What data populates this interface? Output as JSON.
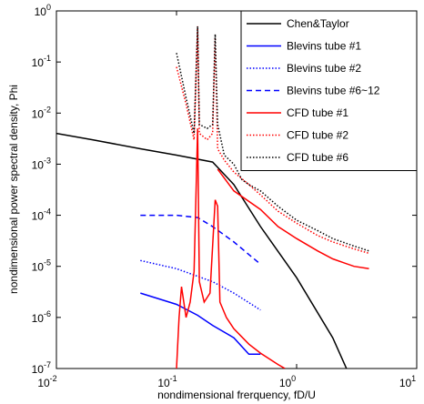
{
  "chart_data": {
    "type": "line",
    "xlabel": "nondimensional frerquency, fD/U",
    "ylabel": "nondimensional power spectral density, Phi",
    "xscale": "log",
    "yscale": "log",
    "xlim": [
      0.01,
      10
    ],
    "ylim": [
      1e-07,
      1
    ],
    "xticks": [
      {
        "value": 0.01,
        "label": "10^-2"
      },
      {
        "value": 0.1,
        "label": "10^-1"
      },
      {
        "value": 1,
        "label": "10^0"
      },
      {
        "value": 10,
        "label": "10^1"
      }
    ],
    "yticks": [
      {
        "value": 1e-07,
        "label": "10^-7"
      },
      {
        "value": 1e-06,
        "label": "10^-6"
      },
      {
        "value": 1e-05,
        "label": "10^-5"
      },
      {
        "value": 0.0001,
        "label": "10^-4"
      },
      {
        "value": 0.001,
        "label": "10^-3"
      },
      {
        "value": 0.01,
        "label": "10^-2"
      },
      {
        "value": 0.1,
        "label": "10^-1"
      },
      {
        "value": 1,
        "label": "10^0"
      }
    ],
    "legend": "upper right",
    "series": [
      {
        "name": "Chen&Taylor",
        "color": "#000000",
        "style": "solid",
        "x": [
          0.01,
          0.02,
          0.05,
          0.1,
          0.2,
          0.3,
          0.5,
          1,
          2,
          2.6
        ],
        "values": [
          0.004,
          0.003,
          0.002,
          0.0015,
          0.0011,
          0.0004,
          6e-05,
          6e-06,
          4e-07,
          1e-07
        ]
      },
      {
        "name": "Blevins tube #1",
        "color": "#0000ff",
        "style": "solid",
        "x": [
          0.05,
          0.1,
          0.15,
          0.2,
          0.3,
          0.4,
          0.5
        ],
        "values": [
          3e-06,
          1.8e-06,
          1.1e-06,
          7e-07,
          4e-07,
          1.9e-07,
          1.9e-07
        ]
      },
      {
        "name": "Blevins tube #2",
        "color": "#0000ff",
        "style": "dotted",
        "x": [
          0.05,
          0.1,
          0.2,
          0.3,
          0.5
        ],
        "values": [
          1.3e-05,
          9e-06,
          5e-06,
          3e-06,
          1.4e-06
        ]
      },
      {
        "name": "Blevins tube #6~12",
        "color": "#0000ff",
        "style": "dashed",
        "x": [
          0.05,
          0.1,
          0.15,
          0.2,
          0.3,
          0.5
        ],
        "values": [
          0.0001,
          0.0001,
          9e-05,
          6e-05,
          3e-05,
          1.1e-05
        ]
      },
      {
        "name": "CFD tube #1",
        "color": "#ff0000",
        "style": "solid",
        "x": [
          0.1,
          0.105,
          0.11,
          0.12,
          0.13,
          0.14,
          0.15,
          0.155,
          0.17,
          0.19,
          0.21,
          0.22,
          0.23,
          0.26,
          0.3,
          0.4,
          0.5,
          0.7,
          0.8,
          0.8,
          0.22,
          0.3,
          0.5,
          0.7,
          1,
          1.5,
          2,
          3,
          4
        ],
        "values": [
          1e-07,
          1e-06,
          4e-06,
          1e-06,
          2e-06,
          8e-06,
          0.005,
          5e-06,
          2e-06,
          3e-06,
          0.0002,
          0.00015,
          2e-06,
          1e-06,
          6e-07,
          3e-07,
          2e-07,
          1.2e-07,
          1e-07,
          null,
          0.0008,
          0.0003,
          0.00013,
          6e-05,
          3.5e-05,
          2e-05,
          1.4e-05,
          1e-05,
          9e-06
        ]
      },
      {
        "name": "CFD tube #2",
        "color": "#ff0000",
        "style": "dotted",
        "x": [
          0.1,
          0.12,
          0.14,
          0.15,
          0.155,
          0.18,
          0.2,
          0.21,
          0.22,
          0.25,
          0.3,
          0.4,
          0.5,
          0.7,
          1,
          1.5,
          2,
          3,
          4
        ],
        "values": [
          0.08,
          0.015,
          0.003,
          0.5,
          0.004,
          0.003,
          0.004,
          0.3,
          0.002,
          0.0012,
          0.0007,
          0.0004,
          0.00025,
          0.00012,
          7e-05,
          4e-05,
          3e-05,
          2.2e-05,
          1.8e-05
        ]
      },
      {
        "name": "CFD tube #6",
        "color": "#000000",
        "style": "dotted",
        "x": [
          0.1,
          0.12,
          0.14,
          0.15,
          0.155,
          0.18,
          0.2,
          0.21,
          0.22,
          0.25,
          0.3,
          0.35,
          0.4,
          0.5,
          0.7,
          1,
          1.5,
          2,
          3,
          4
        ],
        "values": [
          0.15,
          0.02,
          0.004,
          0.5,
          0.006,
          0.005,
          0.006,
          0.35,
          0.006,
          0.0015,
          0.001,
          0.0005,
          0.0004,
          0.0003,
          0.00015,
          8e-05,
          5e-05,
          3.5e-05,
          2.5e-05,
          2e-05
        ]
      }
    ]
  }
}
